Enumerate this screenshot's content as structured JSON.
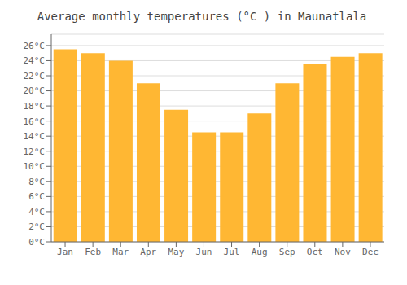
{
  "chart_data": {
    "type": "bar",
    "title": "Average monthly temperatures (°C ) in Maunatlala",
    "categories": [
      "Jan",
      "Feb",
      "Mar",
      "Apr",
      "May",
      "Jun",
      "Jul",
      "Aug",
      "Sep",
      "Oct",
      "Nov",
      "Dec"
    ],
    "values": [
      25.5,
      25.0,
      24.0,
      21.0,
      17.5,
      14.5,
      14.5,
      17.0,
      21.0,
      23.5,
      24.5,
      25.0
    ],
    "color": "#FFB733",
    "ylim": [
      0,
      27.5
    ],
    "yticks": [
      {
        "value": 0,
        "label": "0°C"
      },
      {
        "value": 2,
        "label": "2°C"
      },
      {
        "value": 4,
        "label": "4°C"
      },
      {
        "value": 6,
        "label": "6°C"
      },
      {
        "value": 8,
        "label": "8°C"
      },
      {
        "value": 10,
        "label": "10°C"
      },
      {
        "value": 12,
        "label": "12°C"
      },
      {
        "value": 14,
        "label": "14°C"
      },
      {
        "value": 16,
        "label": "16°C"
      },
      {
        "value": 18,
        "label": "18°C"
      },
      {
        "value": 20,
        "label": "20°C"
      },
      {
        "value": 22,
        "label": "22°C"
      },
      {
        "value": 24,
        "label": "24°C"
      },
      {
        "value": 26,
        "label": "26°C"
      }
    ],
    "grid": true
  }
}
